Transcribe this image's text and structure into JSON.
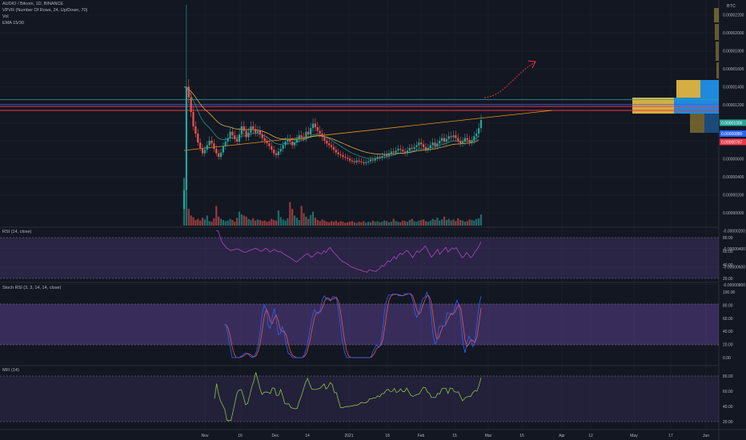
{
  "header": {
    "symbol_line": "AUDIO / Bitcoin, 1D, BINANCE",
    "vpvr_label": "VPVR (Number Of Rows, 24, Up/Down, 70)",
    "vol_label": "Vol",
    "ema_label": "EMA 15/30",
    "currency": "BTC"
  },
  "price_axis": {
    "ticks": [
      "0.00002200",
      "0.00002000",
      "0.00001800",
      "0.00001600",
      "0.00001400",
      "0.00001200",
      "0.00001000",
      "0.00000800",
      "0.00000600",
      "0.00000400",
      "0.00000200",
      "0.00000000",
      "-0.00000200",
      "-0.00000400",
      "-0.00000600",
      "-0.00000800"
    ],
    "badges": [
      {
        "text": "0.00001000",
        "color": "#26a69a"
      },
      {
        "text": "0.00000880",
        "color": "#2962ff"
      },
      {
        "text": "0.00000787",
        "color": "#f23645"
      }
    ]
  },
  "rsi": {
    "label": "RSI (14, close)",
    "ticks": [
      "80.00",
      "60.00",
      "40.00",
      "20.00"
    ]
  },
  "stoch": {
    "label": "Stoch RSI (3, 3, 14, 14, close)",
    "ticks": [
      "100.00",
      "80.00",
      "60.00",
      "40.00",
      "20.00",
      "0.00"
    ]
  },
  "mfi": {
    "label": "MFI (14)",
    "ticks": [
      "80.00",
      "60.00",
      "40.00",
      "20.00"
    ]
  },
  "time_axis": [
    "Nov",
    "16",
    "Dec",
    "14",
    "2021",
    "18",
    "Feb",
    "15",
    "Mar",
    "15",
    "Apr",
    "12",
    "May",
    "17",
    "Jun"
  ],
  "colors": {
    "bg": "#131722",
    "up": "#26a69a",
    "down": "#ef5350",
    "band": "#7e57c2",
    "ema_fast": "#26a69a",
    "ema_slow": "#f7c948",
    "rsi": "#ab47bc",
    "stoch_k": "#2962ff",
    "stoch_d": "#ef5350",
    "mfi": "#8bc34a",
    "trend": "#f7a21b",
    "arrow": "#f23645"
  },
  "chart_data": {
    "type": "candlestick",
    "symbol": "AUDIO / Bitcoin",
    "interval": "1D",
    "exchange": "BINANCE",
    "ylim": [
      -9e-07,
      2.32e-05
    ],
    "start": "2020-11-02",
    "close": [
      2.5e-06,
      1.4e-05,
      1.28e-05,
      1.12e-05,
      9.6e-06,
      8.8e-06,
      7.8e-06,
      7.2e-06,
      6.6e-06,
      7e-06,
      7.5e-06,
      8e-06,
      7.7e-06,
      7.1e-06,
      6.6e-06,
      6.2e-06,
      6.7e-06,
      7.4e-06,
      7.9e-06,
      8.3e-06,
      9e-06,
      8.6e-06,
      8.2e-06,
      7.9e-06,
      8.7e-06,
      9.6e-06,
      9.1e-06,
      8.4e-06,
      8.9e-06,
      9.6e-06,
      9.3e-06,
      8.9e-06,
      9.1e-06,
      8.7e-06,
      8.3e-06,
      8e-06,
      7.7e-06,
      7.4e-06,
      7e-06,
      6.6e-06,
      6.4e-06,
      6.8e-06,
      7.1e-06,
      7.5e-06,
      7.9e-06,
      8.2e-06,
      7.9e-06,
      7.5e-06,
      7.8e-06,
      8.2e-06,
      8.6e-06,
      8.4e-06,
      8.3e-06,
      9e-06,
      8.7e-06,
      9.4e-06,
      9.9e-06,
      9.5e-06,
      9.1e-06,
      8.8e-06,
      8.4e-06,
      8e-06,
      7.7e-06,
      7.5e-06,
      7.3e-06,
      7e-06,
      6.7e-06,
      6.5e-06,
      6.4e-06,
      6.2e-06,
      6.1e-06,
      6e-06,
      5.8e-06,
      5.7e-06,
      5.6e-06,
      5.8e-06,
      5.7e-06,
      5.6e-06,
      5.5e-06,
      5.6e-06,
      5.7e-06,
      5.9e-06,
      5.8e-06,
      6e-06,
      6.2e-06,
      6.1e-06,
      6.3e-06,
      6.5e-06,
      6.3e-06,
      6.6e-06,
      6.8e-06,
      6.7e-06,
      6.9e-06,
      7.1e-06,
      7e-06,
      6.8e-06,
      6.6e-06,
      6.9e-06,
      7.2e-06,
      7.1e-06,
      7.3e-06,
      7.5e-06,
      7.8e-06,
      7.6e-06,
      7.3e-06,
      7e-06,
      7.2e-06,
      7.5e-06,
      7.8e-06,
      7.4e-06,
      7.7e-06,
      8e-06,
      8.3e-06,
      7.9e-06,
      8.2e-06,
      8.5e-06,
      8.4e-06,
      8.6e-06,
      8.3e-06,
      8e-06,
      7.7e-06,
      7.9e-06,
      8.3e-06,
      8.1e-06,
      7.8e-06,
      8e-06,
      8.5e-06,
      8.8e-06,
      9.4e-06,
      1.03e-05
    ],
    "volume_rel": [
      0.85,
      0.62,
      0.3,
      0.18,
      0.15,
      0.1,
      0.12,
      0.09,
      0.14,
      0.11,
      0.18,
      0.08,
      0.07,
      0.13,
      0.35,
      0.16,
      0.12,
      0.1,
      0.08,
      0.09,
      0.12,
      0.1,
      0.07,
      0.14,
      0.25,
      0.2,
      0.18,
      0.16,
      0.12,
      0.1,
      0.13,
      0.09,
      0.11,
      0.1,
      0.08,
      0.09,
      0.07,
      0.08,
      0.12,
      0.1,
      0.09,
      0.27,
      0.15,
      0.11,
      0.09,
      0.13,
      0.42,
      0.3,
      0.18,
      0.14,
      0.1,
      0.35,
      0.22,
      0.16,
      0.12,
      0.19,
      0.25,
      0.14,
      0.1,
      0.08,
      0.11,
      0.09,
      0.07,
      0.06,
      0.08,
      0.07,
      0.09,
      0.06,
      0.08,
      0.07,
      0.05,
      0.06,
      0.07,
      0.08,
      0.06,
      0.05,
      0.07,
      0.06,
      0.08,
      0.05,
      0.07,
      0.06,
      0.09,
      0.07,
      0.08,
      0.06,
      0.07,
      0.09,
      0.08,
      0.06,
      0.07,
      0.12,
      0.08,
      0.07,
      0.06,
      0.09,
      0.08,
      0.07,
      0.1,
      0.12,
      0.08,
      0.07,
      0.09,
      0.1,
      0.11,
      0.08,
      0.07,
      0.09,
      0.12,
      0.1,
      0.14,
      0.09,
      0.11,
      0.16,
      0.1,
      0.12,
      0.09,
      0.11,
      0.08,
      0.13,
      0.1,
      0.09,
      0.07,
      0.08,
      0.11,
      0.1,
      0.09,
      0.12,
      0.13,
      0.2
    ],
    "horizontal_levels": [
      1e-05,
      8.8e-06,
      8.1e-06,
      7.9e-06
    ],
    "trendline": [
      [
        "2020-11-02",
        4.5e-07
      ],
      [
        "2021-03-10",
        7.3e-06
      ]
    ],
    "rsi_range": [
      20,
      80
    ],
    "stoch_range": [
      0,
      100
    ],
    "mfi_range": [
      20,
      80
    ]
  }
}
